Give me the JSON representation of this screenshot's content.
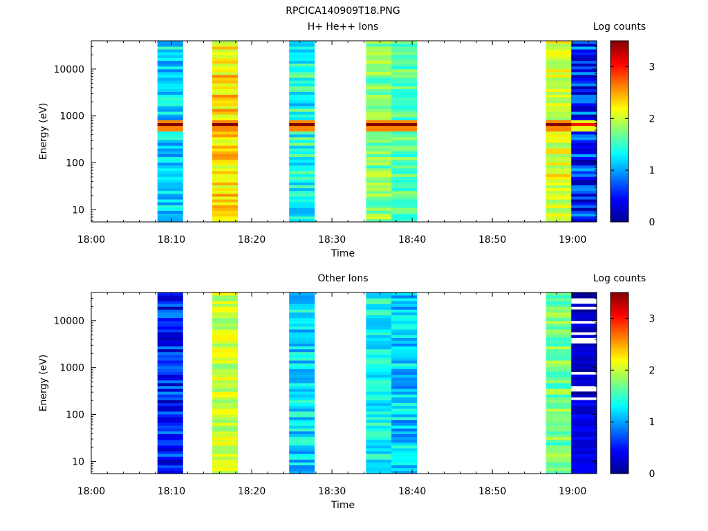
{
  "figure_title": "RPCICA140909T18.PNG",
  "chart_data": [
    {
      "type": "heatmap",
      "title": "H+ He++ Ions",
      "xlabel": "Time",
      "ylabel": "Energy (eV)",
      "yscale": "log",
      "xlim": [
        "18:00",
        "19:03"
      ],
      "ylim": [
        5.5,
        40000
      ],
      "xticks": [
        "18:00",
        "18:10",
        "18:20",
        "18:30",
        "18:40",
        "18:50",
        "19:00"
      ],
      "yticks": [
        "10",
        "100",
        "1000",
        "10000"
      ],
      "colorbar": {
        "label": "Log counts",
        "range": [
          0,
          3.5
        ],
        "ticks": [
          "0",
          "1",
          "2",
          "3"
        ],
        "colormap": "jet"
      },
      "columns": [
        {
          "start": "18:08:15",
          "end": "18:11:25",
          "pattern": "stripes",
          "base": 1.2,
          "jitter": 0.35,
          "peak_ev": 650,
          "peak": 3.5,
          "seed": 11
        },
        {
          "start": "18:15:05",
          "end": "18:18:15",
          "pattern": "stripes",
          "base": 2.3,
          "jitter": 0.35,
          "peak_ev": 650,
          "peak": 3.5,
          "seed": 23
        },
        {
          "start": "18:24:40",
          "end": "18:27:50",
          "pattern": "stripes",
          "base": 1.4,
          "jitter": 0.4,
          "peak_ev": 650,
          "peak": 3.5,
          "seed": 37
        },
        {
          "start": "18:34:15",
          "end": "18:37:25",
          "pattern": "stripes",
          "base": 1.75,
          "jitter": 0.3,
          "peak_ev": 650,
          "peak": 3.5,
          "seed": 41
        },
        {
          "start": "18:37:25",
          "end": "18:40:35",
          "pattern": "stripes",
          "base": 1.65,
          "jitter": 0.3,
          "peak_ev": 650,
          "peak": 3.5,
          "seed": 53
        },
        {
          "start": "18:56:40",
          "end": "18:59:50",
          "pattern": "stripes",
          "base": 2.1,
          "jitter": 0.3,
          "peak_ev": 650,
          "peak": 3.5,
          "seed": 67
        },
        {
          "start": "18:59:50",
          "end": "19:03:00",
          "pattern": "stripes",
          "base": 0.6,
          "jitter": 0.5,
          "peak_ev": 650,
          "peak": 3.0,
          "seed": 79
        }
      ]
    },
    {
      "type": "heatmap",
      "title": "Other Ions",
      "xlabel": "Time",
      "ylabel": "Energy (eV)",
      "yscale": "log",
      "xlim": [
        "18:00",
        "19:03"
      ],
      "ylim": [
        5.5,
        40000
      ],
      "xticks": [
        "18:00",
        "18:10",
        "18:20",
        "18:30",
        "18:40",
        "18:50",
        "19:00"
      ],
      "yticks": [
        "10",
        "100",
        "1000",
        "10000"
      ],
      "colorbar": {
        "label": "Log counts",
        "range": [
          0,
          3.5
        ],
        "ticks": [
          "0",
          "1",
          "2",
          "3"
        ],
        "colormap": "jet"
      },
      "columns": [
        {
          "start": "18:08:15",
          "end": "18:11:25",
          "pattern": "stripes",
          "base": 0.55,
          "jitter": 0.4,
          "seed": 13
        },
        {
          "start": "18:15:05",
          "end": "18:18:15",
          "pattern": "stripes",
          "base": 2.0,
          "jitter": 0.25,
          "seed": 29
        },
        {
          "start": "18:24:40",
          "end": "18:27:50",
          "pattern": "stripes",
          "base": 1.2,
          "jitter": 0.35,
          "seed": 31
        },
        {
          "start": "18:34:15",
          "end": "18:37:25",
          "pattern": "stripes",
          "base": 1.35,
          "jitter": 0.3,
          "seed": 43
        },
        {
          "start": "18:37:25",
          "end": "18:40:35",
          "pattern": "stripes",
          "base": 1.15,
          "jitter": 0.35,
          "seed": 59
        },
        {
          "start": "18:56:40",
          "end": "18:59:50",
          "pattern": "stripes",
          "base": 1.7,
          "jitter": 0.3,
          "seed": 71
        },
        {
          "start": "18:59:50",
          "end": "19:03:00",
          "pattern": "sparse",
          "base": 0.15,
          "jitter": 0.2,
          "seed": 83
        }
      ]
    }
  ]
}
